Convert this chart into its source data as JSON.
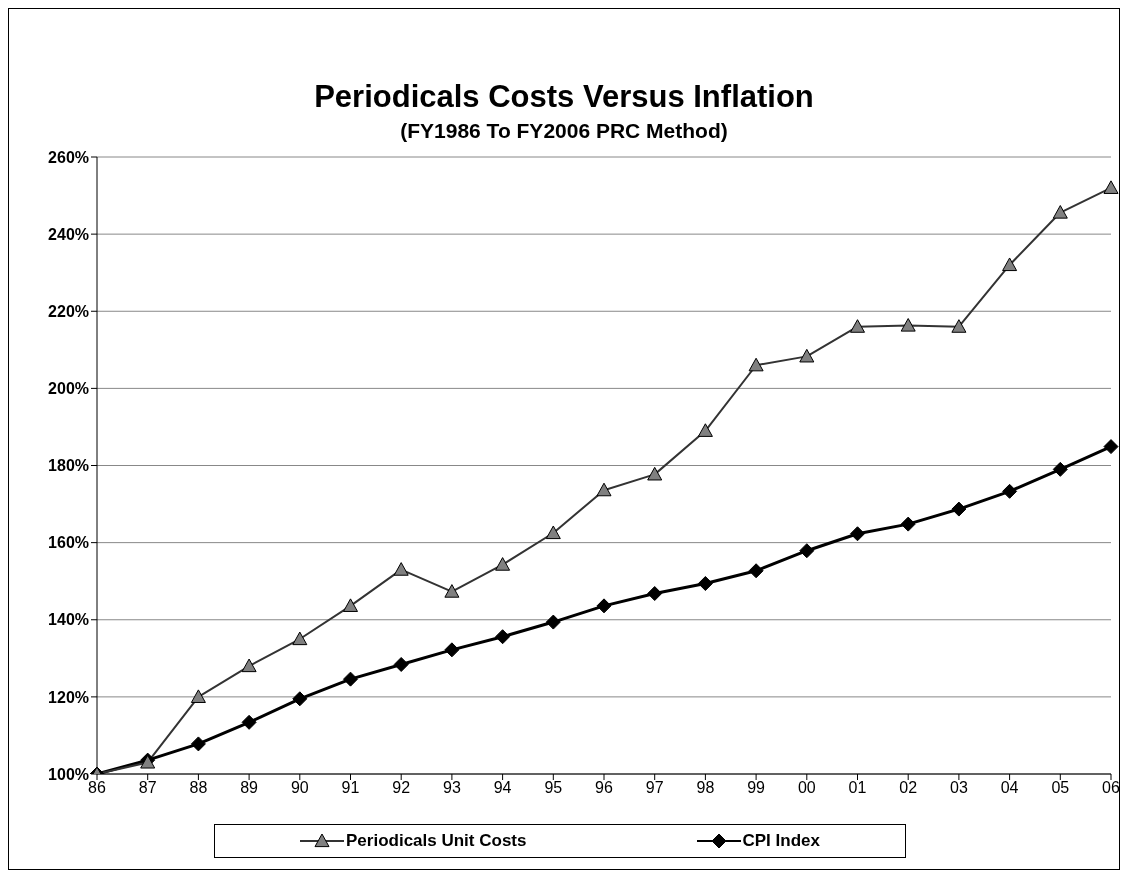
{
  "chart_data": {
    "type": "line",
    "title": "Periodicals Costs Versus Inflation",
    "subtitle": "(FY1986 To FY2006 PRC Method)",
    "categories": [
      "86",
      "87",
      "88",
      "89",
      "90",
      "91",
      "92",
      "93",
      "94",
      "95",
      "96",
      "97",
      "98",
      "99",
      "00",
      "01",
      "02",
      "03",
      "04",
      "05",
      "06"
    ],
    "series": [
      {
        "name": "Periodicals Unit Costs",
        "color": "#808080",
        "marker": "triangle",
        "values": [
          100,
          103,
          120,
          128,
          135,
          143.6,
          153,
          147.3,
          154.3,
          162.5,
          173.6,
          177.7,
          189,
          206,
          208.3,
          216,
          216.3,
          216,
          232,
          245.6,
          252
        ]
      },
      {
        "name": "CPI Index",
        "color": "#000000",
        "marker": "diamond",
        "values": [
          100,
          103.6,
          107.8,
          113.4,
          119.5,
          124.6,
          128.4,
          132.2,
          135.6,
          139.4,
          143.6,
          146.8,
          149.4,
          152.7,
          157.9,
          162.3,
          164.8,
          168.7,
          173.3,
          179,
          184.9
        ]
      }
    ],
    "ylim": [
      100,
      260
    ],
    "yticks": [
      {
        "value": 100,
        "label": "100%"
      },
      {
        "value": 120,
        "label": "120%"
      },
      {
        "value": 140,
        "label": "140%"
      },
      {
        "value": 160,
        "label": "160%"
      },
      {
        "value": 180,
        "label": "180%"
      },
      {
        "value": 200,
        "label": "200%"
      },
      {
        "value": 220,
        "label": "220%"
      },
      {
        "value": 240,
        "label": "240%"
      },
      {
        "value": 260,
        "label": "260%"
      }
    ],
    "grid": "y",
    "legend": "bottom",
    "line_style": "solid"
  }
}
